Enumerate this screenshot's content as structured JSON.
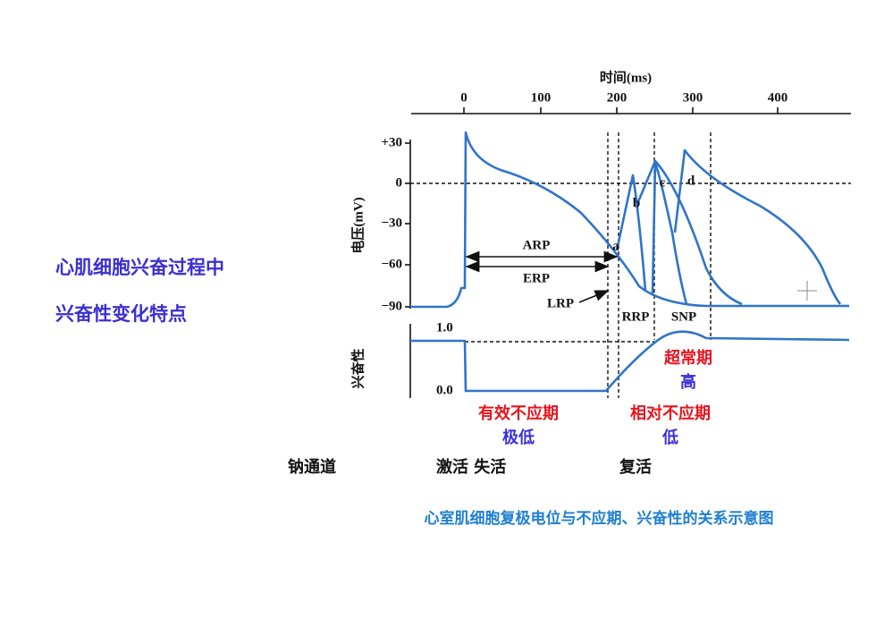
{
  "title": [
    "心肌细胞兴奋过程中",
    "兴奋性变化特点"
  ],
  "figure": {
    "x_axis_label": "时间(ms)",
    "x_ticks": [
      "0",
      "100",
      "200",
      "300",
      "400"
    ],
    "y_axis_label": "电压(mV)",
    "y_ticks": [
      "+30",
      "0",
      "−30",
      "−60",
      "−90"
    ],
    "excitability_label": "兴奋性",
    "excitability_ticks": [
      "1.0",
      "0.0"
    ],
    "period_labels": [
      "ARP",
      "ERP",
      "LRP",
      "RRP",
      "SNP"
    ],
    "point_labels": [
      "a",
      "b",
      "c",
      "d"
    ]
  },
  "annotations": [
    {
      "period": "有效不应期",
      "level": "极低"
    },
    {
      "period": "相对不应期",
      "level": "低"
    },
    {
      "period": "超常期",
      "level": "高"
    }
  ],
  "sodium_channel": {
    "label": "钠通道",
    "states": [
      "激活 失活",
      "复活"
    ]
  },
  "caption": "心室肌细胞复极电位与不应期、兴奋性的关系示意图"
}
